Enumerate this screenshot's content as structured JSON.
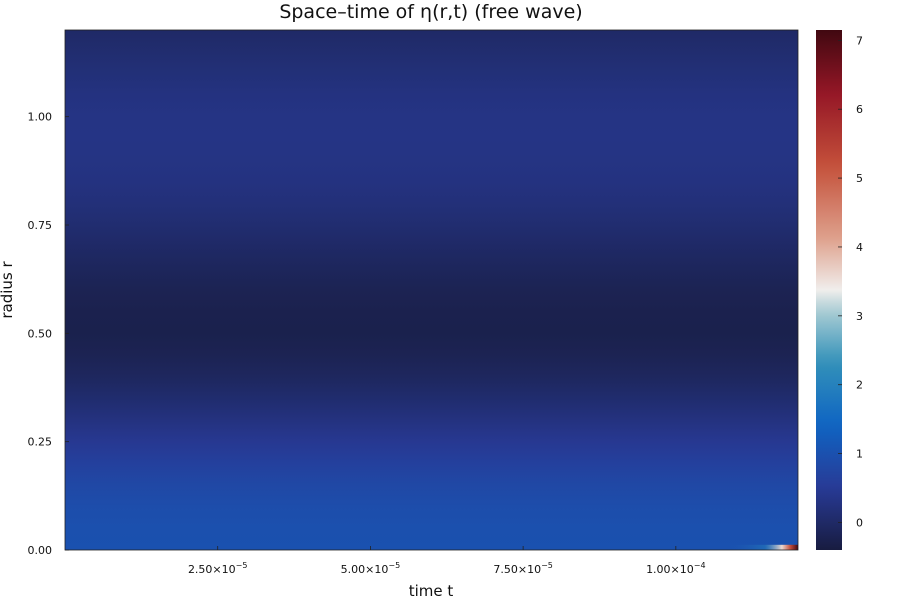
{
  "chart_data": {
    "type": "heatmap",
    "title": "Space–time of η(r,t) (free wave)",
    "xlabel": "time t",
    "ylabel": "radius r",
    "xlim": [
      0,
      0.00012
    ],
    "ylim": [
      0,
      1.2
    ],
    "x_ticks": [
      {
        "value": 2.5e-05,
        "mantissa": "2.50×10",
        "exp": "−5"
      },
      {
        "value": 5e-05,
        "mantissa": "5.00×10",
        "exp": "−5"
      },
      {
        "value": 7.5e-05,
        "mantissa": "7.50×10",
        "exp": "−5"
      },
      {
        "value": 0.0001,
        "mantissa": "1.00×10",
        "exp": "−4"
      }
    ],
    "y_ticks": [
      {
        "value": 0.0,
        "label": "0.00"
      },
      {
        "value": 0.25,
        "label": "0.25"
      },
      {
        "value": 0.5,
        "label": "0.50"
      },
      {
        "value": 0.75,
        "label": "0.75"
      },
      {
        "value": 1.0,
        "label": "1.00"
      }
    ],
    "colorbar": {
      "colormap": "balance",
      "range": [
        -0.4,
        7.15
      ],
      "ticks": [
        {
          "value": 0,
          "label": "0"
        },
        {
          "value": 1,
          "label": "1"
        },
        {
          "value": 2,
          "label": "2"
        },
        {
          "value": 3,
          "label": "3"
        },
        {
          "value": 4,
          "label": "4"
        },
        {
          "value": 5,
          "label": "5"
        },
        {
          "value": 6,
          "label": "6"
        },
        {
          "value": 7,
          "label": "7"
        }
      ]
    },
    "field_profile_r": [
      0.0,
      0.05,
      0.1,
      0.15,
      0.2,
      0.25,
      0.3,
      0.35,
      0.4,
      0.45,
      0.5,
      0.55,
      0.6,
      0.65,
      0.7,
      0.75,
      0.8,
      0.85,
      0.9,
      0.95,
      1.0,
      1.05,
      1.1,
      1.15,
      1.2
    ],
    "field_profile_eta": [
      1.0,
      0.98,
      0.92,
      0.8,
      0.64,
      0.45,
      0.26,
      0.08,
      -0.08,
      -0.2,
      -0.26,
      -0.25,
      -0.2,
      -0.11,
      0.0,
      0.11,
      0.2,
      0.27,
      0.31,
      0.33,
      0.32,
      0.27,
      0.19,
      0.1,
      0.0
    ],
    "hotspot": {
      "t": 0.00012,
      "r": 0.0,
      "eta_max": 7.15
    }
  }
}
